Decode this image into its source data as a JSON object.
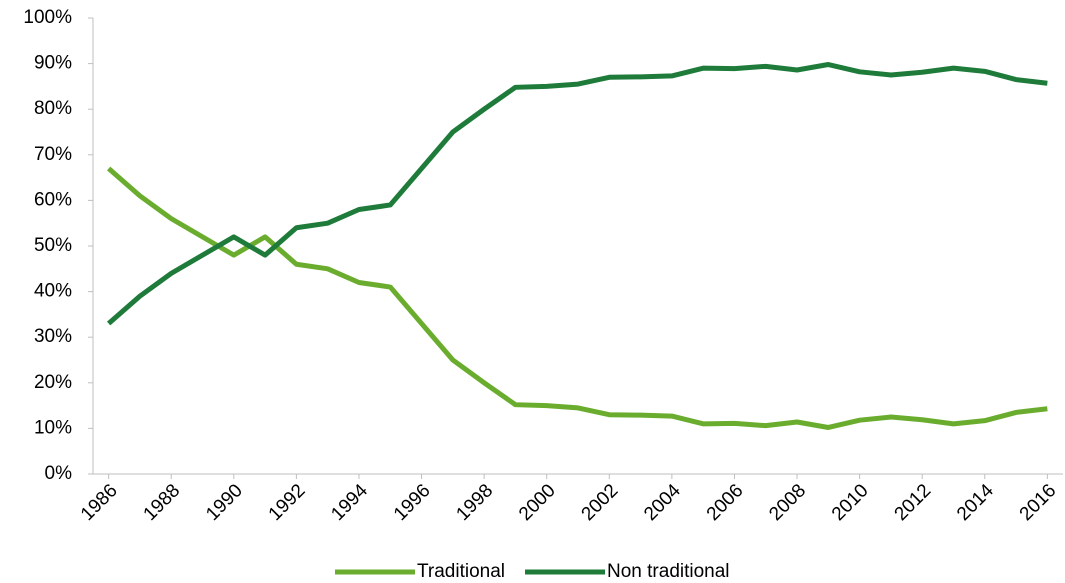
{
  "chart_data": {
    "type": "line",
    "x": [
      1986,
      1987,
      1988,
      1989,
      1990,
      1991,
      1992,
      1993,
      1994,
      1995,
      1996,
      1997,
      1998,
      1999,
      2000,
      2001,
      2002,
      2003,
      2004,
      2005,
      2006,
      2007,
      2008,
      2009,
      2010,
      2011,
      2012,
      2013,
      2014,
      2015,
      2016
    ],
    "series": [
      {
        "name": "Traditional",
        "color": "#6aad2e",
        "values": [
          67,
          61,
          56,
          52,
          48,
          52,
          46,
          45,
          42,
          41,
          33,
          25,
          20,
          15.2,
          15,
          14.5,
          13,
          12.9,
          12.7,
          11,
          11.1,
          10.6,
          11.4,
          10.2,
          11.8,
          12.5,
          11.9,
          11,
          11.7,
          13.5,
          14.3
        ]
      },
      {
        "name": "Non traditional",
        "color": "#1e7b3a",
        "values": [
          33,
          39,
          44,
          48,
          52,
          48,
          54,
          55,
          58,
          59,
          67,
          75,
          80,
          84.8,
          85,
          85.5,
          87,
          87.1,
          87.3,
          89,
          88.9,
          89.4,
          88.6,
          89.8,
          88.2,
          87.5,
          88.1,
          89,
          88.3,
          86.5,
          85.7
        ]
      }
    ],
    "xlim": [
      1985.5,
      2016.5
    ],
    "xticks": [
      1986,
      1988,
      1990,
      1992,
      1994,
      1996,
      1998,
      2000,
      2002,
      2004,
      2006,
      2008,
      2010,
      2012,
      2014,
      2016
    ],
    "ylim": [
      0,
      100
    ],
    "yticks": [
      {
        "value": 0,
        "label": "0%"
      },
      {
        "value": 10,
        "label": "10%"
      },
      {
        "value": 20,
        "label": "20%"
      },
      {
        "value": 30,
        "label": "30%"
      },
      {
        "value": 40,
        "label": "40%"
      },
      {
        "value": 50,
        "label": "50%"
      },
      {
        "value": 60,
        "label": "60%"
      },
      {
        "value": 70,
        "label": "70%"
      },
      {
        "value": 80,
        "label": "80%"
      },
      {
        "value": 90,
        "label": "90%"
      },
      {
        "value": 100,
        "label": "100%"
      }
    ],
    "grid": false,
    "legend": "bottom"
  }
}
